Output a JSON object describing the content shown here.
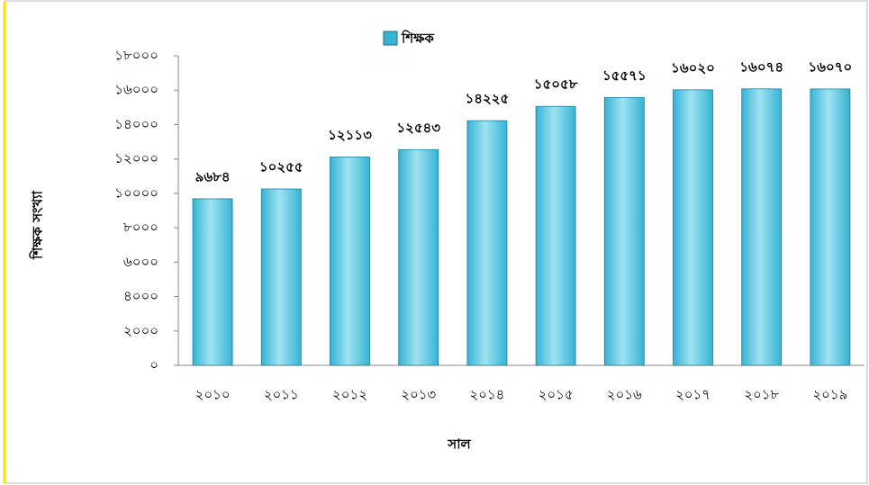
{
  "chart_data": {
    "type": "bar",
    "legend_label": "শিক্ষক",
    "ylabel": "শিক্ষক সংখ্যা",
    "xlabel": "সাল",
    "categories": [
      "২০১০",
      "২০১১",
      "২০১২",
      "২০১৩",
      "২০১৪",
      "২০১৫",
      "২০১৬",
      "২০১৭",
      "২০১৮",
      "২০১৯"
    ],
    "values": [
      9684,
      10255,
      12113,
      12543,
      14225,
      15058,
      15571,
      16020,
      16074,
      16070
    ],
    "value_labels": [
      "৯৬৮৪",
      "১০২৫৫",
      "১২১১৩",
      "১২৫৪৩",
      "১৪২২৫",
      "১৫০৫৮",
      "১৫৫৭১",
      "১৬০২০",
      "১৬০৭৪",
      "১৬০৭০"
    ],
    "color": "#35b3d3",
    "ylim": [
      0,
      18000
    ],
    "yticks": [
      {
        "value": 0,
        "label": "০"
      },
      {
        "value": 2000,
        "label": "২০০০"
      },
      {
        "value": 4000,
        "label": "৪০০০"
      },
      {
        "value": 6000,
        "label": "৬০০০"
      },
      {
        "value": 8000,
        "label": "৮০০০"
      },
      {
        "value": 10000,
        "label": "১০০০০"
      },
      {
        "value": 12000,
        "label": "১২০০০"
      },
      {
        "value": 14000,
        "label": "১৪০০০"
      },
      {
        "value": 16000,
        "label": "১৬০০০"
      },
      {
        "value": 18000,
        "label": "১৮০০০"
      }
    ]
  }
}
